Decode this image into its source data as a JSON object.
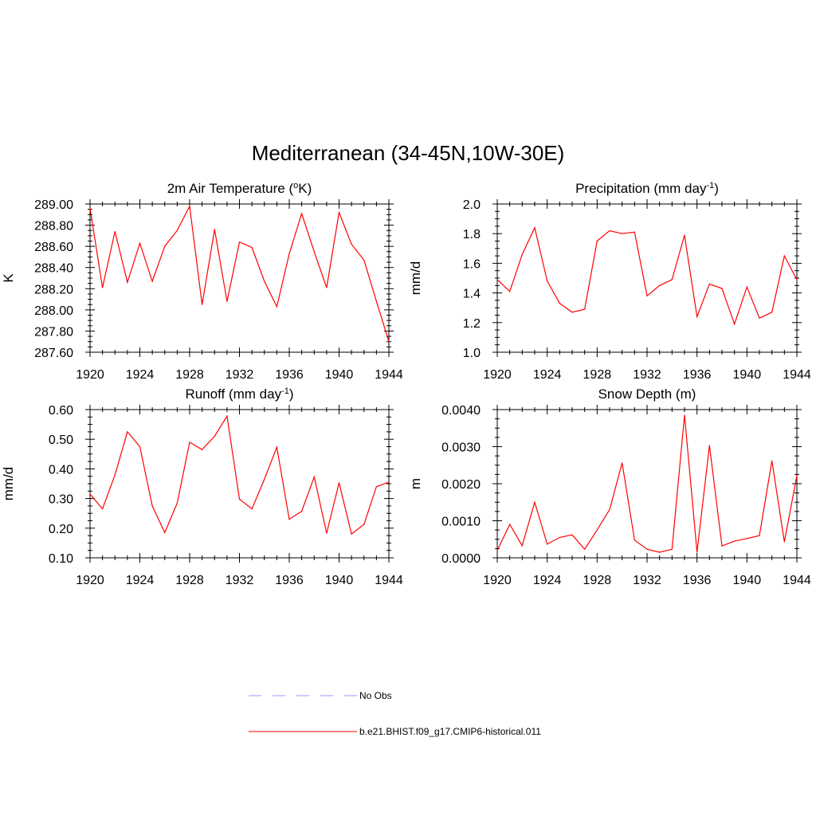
{
  "title": "Mediterranean (34-45N,10W-30E)",
  "colors": {
    "model": "#ff0000",
    "obs": "#9999ff",
    "axis": "#000000"
  },
  "legend": [
    {
      "label": "No Obs",
      "color": "#9999ff",
      "style": "dashed"
    },
    {
      "label": "b.e21.BHIST.f09_g17.CMIP6-historical.011",
      "color": "#ff0000",
      "style": "solid"
    }
  ],
  "chart_data": [
    {
      "type": "line",
      "title": "2m Air Temperature",
      "title_units": "(oK)",
      "ylabel": "K",
      "x": [
        1920,
        1921,
        1922,
        1923,
        1924,
        1925,
        1926,
        1927,
        1928,
        1929,
        1930,
        1931,
        1932,
        1933,
        1934,
        1935,
        1936,
        1937,
        1938,
        1939,
        1940,
        1941,
        1942,
        1943,
        1944
      ],
      "xlim": [
        1920,
        1944
      ],
      "xticks": [
        "1920",
        "1924",
        "1928",
        "1932",
        "1936",
        "1940",
        "1944"
      ],
      "ylim": [
        287.6,
        289.0
      ],
      "yticks": [
        "287.60",
        "287.80",
        "288.00",
        "288.20",
        "288.40",
        "288.60",
        "288.80",
        "289.00"
      ],
      "series": [
        {
          "values": [
            288.96,
            288.21,
            288.74,
            288.26,
            288.63,
            288.27,
            288.6,
            288.75,
            288.98,
            288.05,
            288.76,
            288.08,
            288.64,
            288.59,
            288.27,
            288.03,
            288.53,
            288.91,
            288.55,
            288.21,
            288.92,
            288.62,
            288.47,
            288.08,
            287.7
          ]
        }
      ]
    },
    {
      "type": "line",
      "title": "Precipitation",
      "title_units": "(mm day-1)",
      "ylabel": "mm/d",
      "x": [
        1920,
        1921,
        1922,
        1923,
        1924,
        1925,
        1926,
        1927,
        1928,
        1929,
        1930,
        1931,
        1932,
        1933,
        1934,
        1935,
        1936,
        1937,
        1938,
        1939,
        1940,
        1941,
        1942,
        1943,
        1944
      ],
      "xlim": [
        1920,
        1944
      ],
      "xticks": [
        "1920",
        "1924",
        "1928",
        "1932",
        "1936",
        "1940",
        "1944"
      ],
      "ylim": [
        1.0,
        2.0
      ],
      "yticks": [
        "1.0",
        "1.2",
        "1.4",
        "1.6",
        "1.8",
        "2.0"
      ],
      "series": [
        {
          "values": [
            1.49,
            1.41,
            1.66,
            1.84,
            1.48,
            1.33,
            1.27,
            1.29,
            1.75,
            1.82,
            1.8,
            1.81,
            1.38,
            1.45,
            1.49,
            1.79,
            1.24,
            1.46,
            1.43,
            1.19,
            1.44,
            1.23,
            1.27,
            1.65,
            1.49
          ]
        }
      ]
    },
    {
      "type": "line",
      "title": "Runoff",
      "title_units": "(mm day-1)",
      "ylabel": "mm/d",
      "x": [
        1920,
        1921,
        1922,
        1923,
        1924,
        1925,
        1926,
        1927,
        1928,
        1929,
        1930,
        1931,
        1932,
        1933,
        1934,
        1935,
        1936,
        1937,
        1938,
        1939,
        1940,
        1941,
        1942,
        1943,
        1944
      ],
      "xlim": [
        1920,
        1944
      ],
      "xticks": [
        "1920",
        "1924",
        "1928",
        "1932",
        "1936",
        "1940",
        "1944"
      ],
      "ylim": [
        0.1,
        0.6
      ],
      "yticks": [
        "0.10",
        "0.20",
        "0.30",
        "0.40",
        "0.50",
        "0.60"
      ],
      "series": [
        {
          "values": [
            0.315,
            0.265,
            0.38,
            0.525,
            0.475,
            0.275,
            0.185,
            0.285,
            0.49,
            0.465,
            0.51,
            0.578,
            0.298,
            0.265,
            0.365,
            0.473,
            0.23,
            0.257,
            0.373,
            0.183,
            0.353,
            0.18,
            0.213,
            0.34,
            0.355
          ]
        }
      ]
    },
    {
      "type": "line",
      "title": "Snow Depth (m)",
      "title_units": "",
      "ylabel": "m",
      "x": [
        1920,
        1921,
        1922,
        1923,
        1924,
        1925,
        1926,
        1927,
        1928,
        1929,
        1930,
        1931,
        1932,
        1933,
        1934,
        1935,
        1936,
        1937,
        1938,
        1939,
        1940,
        1941,
        1942,
        1943,
        1944
      ],
      "xlim": [
        1920,
        1944
      ],
      "xticks": [
        "1920",
        "1924",
        "1928",
        "1932",
        "1936",
        "1940",
        "1944"
      ],
      "ylim": [
        0.0,
        0.004
      ],
      "yticks": [
        "0.0000",
        "0.0010",
        "0.0020",
        "0.0030",
        "0.0040"
      ],
      "series": [
        {
          "values": [
            0.0002,
            0.0009,
            0.00033,
            0.0015,
            0.00037,
            0.00055,
            0.00062,
            0.00023,
            0.00075,
            0.0013,
            0.00256,
            0.00048,
            0.00023,
            0.00015,
            0.00023,
            0.00385,
            0.00015,
            0.00303,
            0.00032,
            0.00045,
            0.00052,
            0.0006,
            0.00262,
            0.00043,
            0.00222
          ]
        }
      ]
    }
  ]
}
